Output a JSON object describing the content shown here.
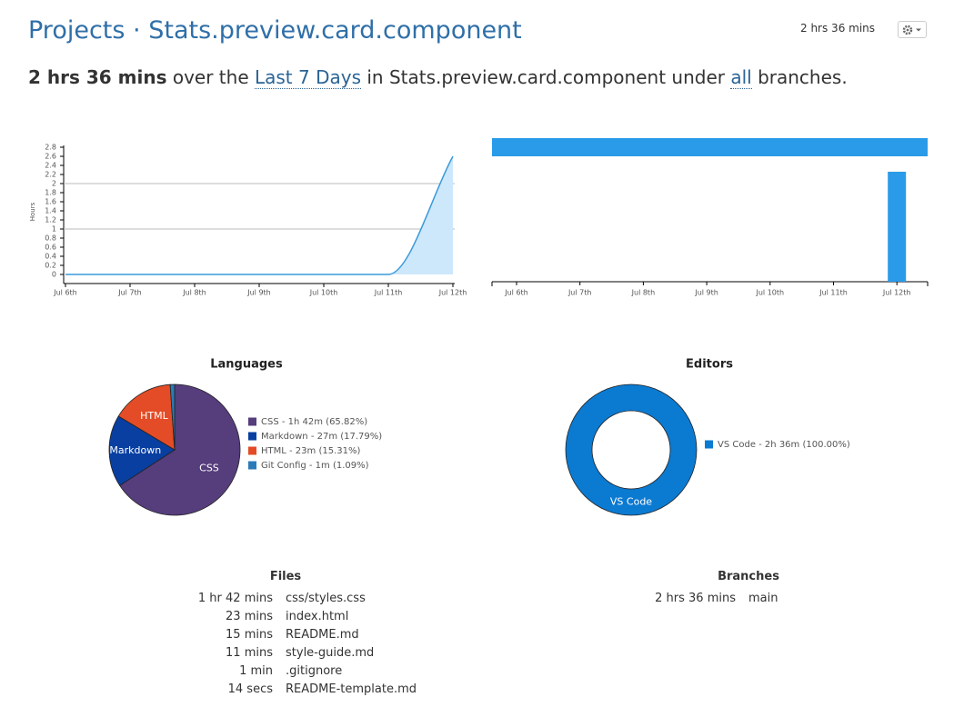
{
  "header": {
    "breadcrumb": "Projects",
    "separator": "·",
    "project": "Stats.preview.card.component",
    "total": "2 hrs 36 mins"
  },
  "summary": {
    "total": "2 hrs 36 mins",
    "text1": "over the",
    "range": "Last 7 Days",
    "text2": "in",
    "project": "Stats.preview.card.component",
    "text3": "under",
    "branches": "all",
    "text4": "branches."
  },
  "chart_data": [
    {
      "type": "area",
      "y_label": "Hours",
      "categories": [
        "Jul 6th",
        "Jul 7th",
        "Jul 8th",
        "Jul 9th",
        "Jul 10th",
        "Jul 11th",
        "Jul 12th"
      ],
      "values": [
        0,
        0,
        0,
        0,
        0,
        0,
        2.6
      ],
      "color": "#3a9ad9",
      "fill": "#cde7fb",
      "ylim": [
        0,
        2.8
      ],
      "yticks": [
        0,
        0.2,
        0.4,
        0.6,
        0.8,
        1,
        1.2,
        1.4,
        1.6,
        1.8,
        2,
        2.2,
        2.4,
        2.6,
        2.8
      ],
      "gridlines": [
        1,
        2
      ]
    },
    {
      "type": "bar",
      "categories": [
        "Jul 6th",
        "Jul 7th",
        "Jul 8th",
        "Jul 9th",
        "Jul 10th",
        "Jul 11th",
        "Jul 12th"
      ],
      "values": [
        0,
        0,
        0,
        0,
        0,
        0,
        2.6
      ],
      "color": "#2a9be8",
      "ylim": [
        0,
        2.9
      ]
    },
    {
      "type": "pie",
      "title": "Languages",
      "categories": [
        "CSS",
        "Markdown",
        "HTML",
        "Git Config"
      ],
      "values": [
        65.82,
        17.79,
        15.31,
        1.09
      ],
      "colors": [
        "#563d7c",
        "#083fa1",
        "#e34c26",
        "#2b7ab8"
      ],
      "legend_labels": [
        "CSS - 1h 42m (65.82%)",
        "Markdown - 27m (17.79%)",
        "HTML - 23m (15.31%)",
        "Git Config - 1m (1.09%)"
      ]
    },
    {
      "type": "donut",
      "title": "Editors",
      "categories": [
        "VS Code"
      ],
      "values": [
        100
      ],
      "colors": [
        "#0b7ad1"
      ],
      "legend_labels": [
        "VS Code - 2h 36m (100.00%)"
      ]
    }
  ],
  "files": {
    "title": "Files",
    "rows": [
      [
        "1 hr 42 mins",
        "css/styles.css"
      ],
      [
        "23 mins",
        "index.html"
      ],
      [
        "15 mins",
        "README.md"
      ],
      [
        "11 mins",
        "style-guide.md"
      ],
      [
        "1 min",
        ".gitignore"
      ],
      [
        "14 secs",
        "README-template.md"
      ]
    ]
  },
  "branches": {
    "title": "Branches",
    "rows": [
      [
        "2 hrs 36 mins",
        "main"
      ]
    ]
  }
}
